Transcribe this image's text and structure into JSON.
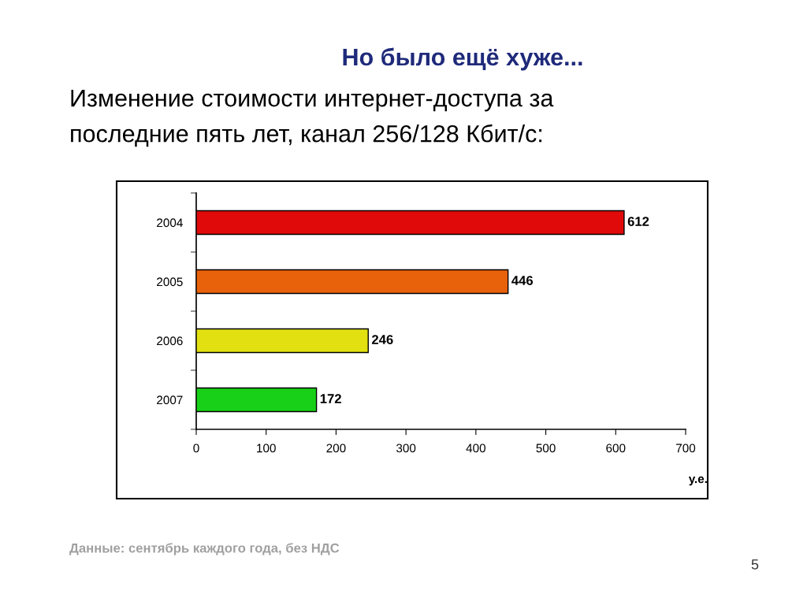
{
  "chart_data": {
    "type": "bar",
    "orientation": "horizontal",
    "title": "Но было ещё хуже...",
    "subtitle": "Изменение стоимости интернет-доступа за\nпоследние пять лет, канал 256/128 Кбит/с:",
    "xlabel": "у.е.",
    "categories": [
      "2004",
      "2005",
      "2006",
      "2007"
    ],
    "values": [
      612,
      446,
      246,
      172
    ],
    "colors": [
      "#e00a0a",
      "#e8620c",
      "#e2e010",
      "#18d018"
    ],
    "xlim": [
      0,
      700
    ],
    "xticks": [
      0,
      100,
      200,
      300,
      400,
      500,
      600,
      700
    ],
    "data_labels": true,
    "annotations": [
      "Данные: сентябрь каждого года, без НДС",
      "5"
    ]
  }
}
